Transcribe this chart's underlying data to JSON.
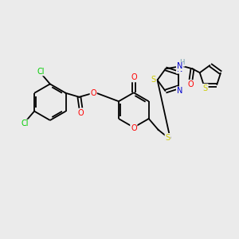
{
  "background_color": "#ebebeb",
  "fig_size": [
    3.0,
    3.0
  ],
  "dpi": 100,
  "colors": {
    "C": "#000000",
    "O": "#ff0000",
    "N": "#0000cc",
    "S": "#cccc00",
    "Cl": "#00cc00",
    "H": "#6699aa",
    "bond": "#000000"
  },
  "bond_lw": 1.3,
  "font_size": 7.0
}
